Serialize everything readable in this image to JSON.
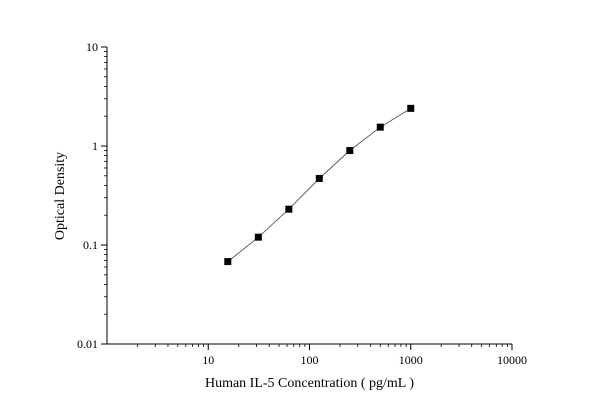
{
  "chart_data": {
    "type": "scatter",
    "xlabel": "Human IL-5 Concentration ( pg/mL )",
    "ylabel": "Optical Density",
    "x_scale": "log",
    "y_scale": "log",
    "xlim": [
      1,
      10000
    ],
    "ylim": [
      0.01,
      10
    ],
    "x_ticks": [
      "10",
      "100",
      "1000",
      "10000"
    ],
    "y_ticks": [
      "0.01",
      "0.1",
      "1",
      "10"
    ],
    "grid": false,
    "series": [
      {
        "x": [
          15.6,
          31.25,
          62.5,
          125,
          250,
          500,
          1000
        ],
        "y": [
          0.068,
          0.12,
          0.23,
          0.47,
          0.9,
          1.55,
          2.4
        ],
        "marker": "square",
        "color": "#000000",
        "line": true
      }
    ]
  }
}
